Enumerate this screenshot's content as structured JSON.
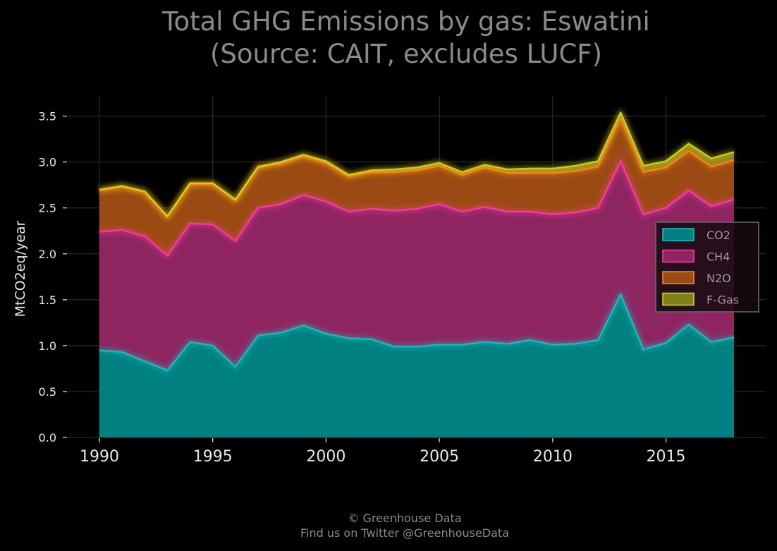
{
  "chart_data": {
    "type": "area",
    "stacked": true,
    "title_lines": [
      "Total GHG Emissions by gas: Eswatini",
      "(Source: CAIT, excludes LUCF)"
    ],
    "xlabel": "",
    "ylabel": "MtCO2eq/year",
    "x": [
      1990,
      1991,
      1992,
      1993,
      1994,
      1995,
      1996,
      1997,
      1998,
      1999,
      2000,
      2001,
      2002,
      2003,
      2004,
      2005,
      2006,
      2007,
      2008,
      2009,
      2010,
      2011,
      2012,
      2013,
      2014,
      2015,
      2016,
      2017,
      2018
    ],
    "xticks": [
      1990,
      1995,
      2000,
      2005,
      2010,
      2015
    ],
    "yticks": [
      "0.0",
      "0.5",
      "1.0",
      "1.5",
      "2.0",
      "2.5",
      "3.0",
      "3.5"
    ],
    "xlim": [
      1988.6,
      2019.4
    ],
    "ylim": [
      0,
      3.72
    ],
    "grid": true,
    "legend_position": "center-right",
    "series": [
      {
        "name": "CO2",
        "color": "#1fc1c3",
        "fill": "#008080",
        "values": [
          0.95,
          0.93,
          0.83,
          0.73,
          1.04,
          1.0,
          0.77,
          1.11,
          1.14,
          1.22,
          1.13,
          1.08,
          1.07,
          0.99,
          0.99,
          1.01,
          1.01,
          1.04,
          1.02,
          1.06,
          1.01,
          1.02,
          1.06,
          1.56,
          0.96,
          1.03,
          1.23,
          1.04,
          1.09
        ]
      },
      {
        "name": "CH4",
        "color": "#ff3ea5",
        "fill": "#8e2560",
        "values": [
          1.29,
          1.33,
          1.36,
          1.25,
          1.29,
          1.32,
          1.37,
          1.39,
          1.4,
          1.42,
          1.44,
          1.38,
          1.42,
          1.48,
          1.5,
          1.53,
          1.45,
          1.47,
          1.44,
          1.4,
          1.42,
          1.43,
          1.44,
          1.45,
          1.47,
          1.47,
          1.46,
          1.48,
          1.5
        ]
      },
      {
        "name": "N2O",
        "color": "#ff8a1f",
        "fill": "#9a4a12",
        "values": [
          0.45,
          0.47,
          0.48,
          0.42,
          0.43,
          0.44,
          0.44,
          0.44,
          0.44,
          0.42,
          0.42,
          0.38,
          0.4,
          0.42,
          0.42,
          0.42,
          0.4,
          0.43,
          0.42,
          0.42,
          0.45,
          0.45,
          0.45,
          0.47,
          0.46,
          0.44,
          0.43,
          0.43,
          0.43
        ]
      },
      {
        "name": "F-Gas",
        "color": "#d9d91f",
        "fill": "#80801a",
        "values": [
          0.01,
          0.01,
          0.01,
          0.01,
          0.01,
          0.01,
          0.01,
          0.01,
          0.02,
          0.02,
          0.02,
          0.02,
          0.02,
          0.03,
          0.03,
          0.03,
          0.03,
          0.03,
          0.04,
          0.05,
          0.05,
          0.06,
          0.06,
          0.06,
          0.07,
          0.07,
          0.08,
          0.09,
          0.09
        ]
      }
    ]
  },
  "footer": {
    "line1": "© Greenhouse Data",
    "line2": "Find us on Twitter @GreenhouseData"
  }
}
